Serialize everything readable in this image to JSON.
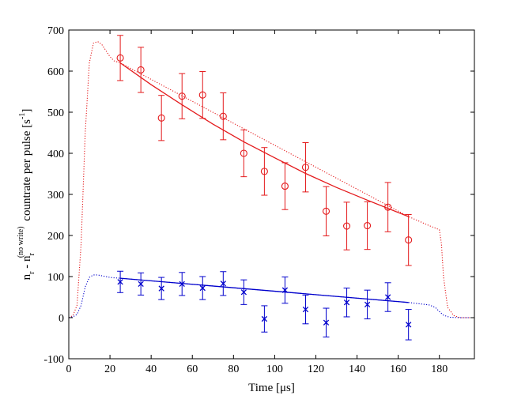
{
  "chart_data": {
    "type": "scatter",
    "title": "",
    "xlabel": "Time [μs]",
    "ylabel": {
      "prefix": "n",
      "sub1": "r",
      "minus": " - n",
      "sub2": "r",
      "sup": "(no write)",
      "rest": " countrate per pulse [s",
      "unit_sup": "-1",
      "close": "]"
    },
    "xlim": [
      0,
      197
    ],
    "ylim": [
      -100,
      700
    ],
    "xticks": [
      0,
      20,
      40,
      60,
      80,
      100,
      120,
      140,
      160,
      180
    ],
    "yticks": [
      -100,
      0,
      100,
      200,
      300,
      400,
      500,
      600,
      700
    ],
    "grid": false,
    "series": [
      {
        "color": "#e41a1c",
        "marker": "circle",
        "x": [
          25,
          35,
          45,
          55,
          65,
          75,
          85,
          95,
          105,
          115,
          125,
          135,
          145,
          155,
          165
        ],
        "y": [
          632,
          603,
          486,
          539,
          542,
          490,
          400,
          356,
          320,
          366,
          259,
          223,
          224,
          269,
          189
        ],
        "err": [
          55,
          55,
          55,
          55,
          57,
          57,
          57,
          58,
          57,
          60,
          60,
          58,
          58,
          60,
          62
        ],
        "fit": {
          "x": [
            25,
            40,
            55,
            70,
            85,
            100,
            115,
            130,
            145,
            165
          ],
          "y": [
            620,
            567,
            518,
            471,
            428,
            389,
            351,
            317,
            286,
            246
          ]
        },
        "profile": {
          "x": [
            0,
            2,
            4,
            6,
            8,
            10,
            12,
            14,
            16,
            18,
            20,
            22,
            25,
            165,
            170,
            175,
            178,
            180,
            181,
            182,
            184,
            187,
            190,
            195
          ],
          "y": [
            0,
            5,
            30,
            180,
            450,
            620,
            668,
            672,
            665,
            650,
            635,
            625,
            620,
            246,
            235,
            224,
            218,
            214,
            180,
            100,
            25,
            5,
            0,
            0
          ]
        }
      },
      {
        "color": "#0000cc",
        "marker": "x",
        "x": [
          25,
          35,
          45,
          55,
          65,
          75,
          85,
          95,
          105,
          115,
          125,
          135,
          145,
          155,
          165
        ],
        "y": [
          87,
          82,
          71,
          82,
          72,
          83,
          62,
          -3,
          67,
          20,
          -12,
          37,
          32,
          50,
          -17
        ],
        "err": [
          26,
          27,
          27,
          28,
          28,
          29,
          30,
          32,
          32,
          35,
          35,
          35,
          35,
          35,
          37
        ],
        "fit": {
          "x": [
            25,
            165
          ],
          "y": [
            96,
            37
          ]
        },
        "profile": {
          "x": [
            0,
            2,
            4,
            6,
            8,
            10,
            12,
            14,
            16,
            18,
            20,
            22,
            25,
            165,
            170,
            175,
            178,
            180,
            182,
            185,
            190,
            195
          ],
          "y": [
            0,
            2,
            8,
            30,
            75,
            98,
            104,
            104,
            102,
            100,
            98,
            97,
            96,
            37,
            34,
            31,
            25,
            15,
            6,
            1,
            0,
            0
          ]
        }
      }
    ]
  }
}
